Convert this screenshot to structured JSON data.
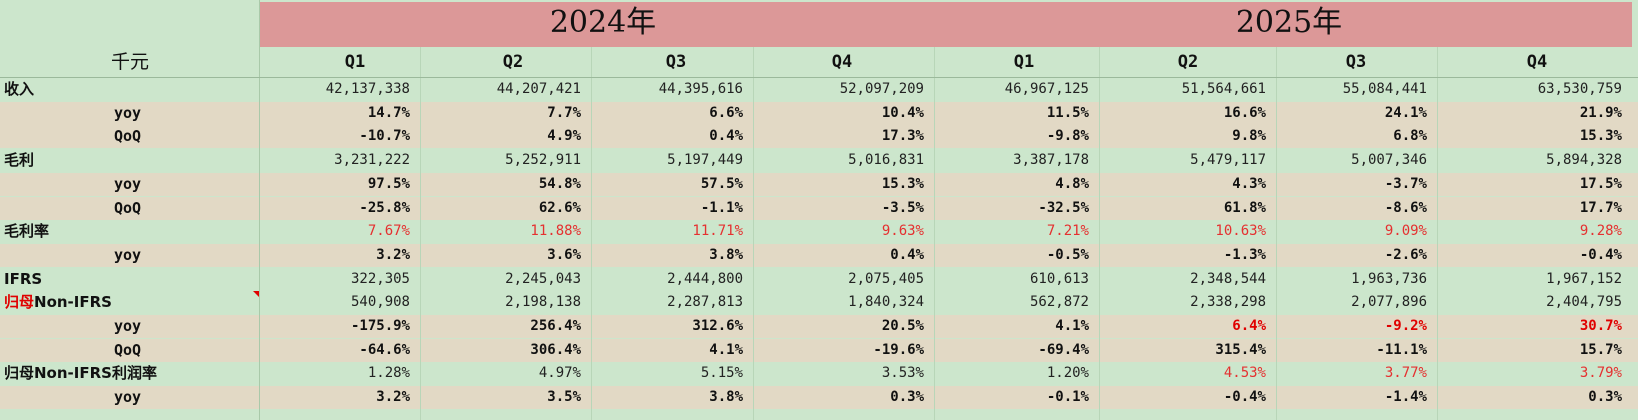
{
  "header": {
    "unit": "千元",
    "years": [
      "2024年",
      "2025年"
    ],
    "quarters": [
      "Q1",
      "Q2",
      "Q3",
      "Q4",
      "Q1",
      "Q2",
      "Q3",
      "Q4"
    ]
  },
  "rows": [
    {
      "label": "收入",
      "type": "metric",
      "values": [
        "42,137,338",
        "44,207,421",
        "44,395,616",
        "52,097,209",
        "46,967,125",
        "51,564,661",
        "55,084,441",
        "63,530,759"
      ]
    },
    {
      "label": "yoy",
      "type": "sub",
      "values": [
        "14.7%",
        "7.7%",
        "6.6%",
        "10.4%",
        "11.5%",
        "16.6%",
        "24.1%",
        "21.9%"
      ]
    },
    {
      "label": "QoQ",
      "type": "sub",
      "values": [
        "-10.7%",
        "4.9%",
        "0.4%",
        "17.3%",
        "-9.8%",
        "9.8%",
        "6.8%",
        "15.3%"
      ]
    },
    {
      "label": "毛利",
      "type": "metric",
      "values": [
        "3,231,222",
        "5,252,911",
        "5,197,449",
        "5,016,831",
        "3,387,178",
        "5,479,117",
        "5,007,346",
        "5,894,328"
      ]
    },
    {
      "label": "yoy",
      "type": "sub",
      "values": [
        "97.5%",
        "54.8%",
        "57.5%",
        "15.3%",
        "4.8%",
        "4.3%",
        "-3.7%",
        "17.5%"
      ]
    },
    {
      "label": "QoQ",
      "type": "sub",
      "values": [
        "-25.8%",
        "62.6%",
        "-1.1%",
        "-3.5%",
        "-32.5%",
        "61.8%",
        "-8.6%",
        "17.7%"
      ]
    },
    {
      "label": "毛利率",
      "type": "metric",
      "values": [
        "7.67%",
        "11.88%",
        "11.71%",
        "9.63%",
        "7.21%",
        "10.63%",
        "9.09%",
        "9.28%"
      ],
      "red": [
        0,
        1,
        2,
        3,
        4,
        5,
        6,
        7
      ]
    },
    {
      "label": "yoy",
      "type": "sub",
      "values": [
        "3.2%",
        "3.6%",
        "3.8%",
        "0.4%",
        "-0.5%",
        "-1.3%",
        "-2.6%",
        "-0.4%"
      ]
    },
    {
      "label": "IFRS",
      "type": "metric",
      "values": [
        "322,305",
        "2,245,043",
        "2,444,800",
        "2,075,405",
        "610,613",
        "2,348,544",
        "1,963,736",
        "1,967,152"
      ]
    },
    {
      "label_red": "归母",
      "label": "Non-IFRS",
      "type": "metric",
      "values": [
        "540,908",
        "2,198,138",
        "2,287,813",
        "1,840,324",
        "562,872",
        "2,338,298",
        "2,077,896",
        "2,404,795"
      ],
      "comment": true
    },
    {
      "label": "yoy",
      "type": "sub",
      "values": [
        "-175.9%",
        "256.4%",
        "312.6%",
        "20.5%",
        "4.1%",
        "6.4%",
        "-9.2%",
        "30.7%"
      ],
      "red": [
        5,
        6,
        7
      ]
    },
    {
      "label": "QoQ",
      "type": "sub",
      "values": [
        "-64.6%",
        "306.4%",
        "4.1%",
        "-19.6%",
        "-69.4%",
        "315.4%",
        "-11.1%",
        "15.7%"
      ]
    },
    {
      "label": "归母Non-IFRS利润率",
      "type": "metric",
      "values": [
        "1.28%",
        "4.97%",
        "5.15%",
        "3.53%",
        "1.20%",
        "4.53%",
        "3.77%",
        "3.79%"
      ],
      "red": [
        5,
        6,
        7
      ]
    },
    {
      "label": "yoy",
      "type": "sub",
      "values": [
        "3.2%",
        "3.5%",
        "3.8%",
        "0.3%",
        "-0.1%",
        "-0.4%",
        "-1.4%",
        "0.3%"
      ]
    }
  ]
}
